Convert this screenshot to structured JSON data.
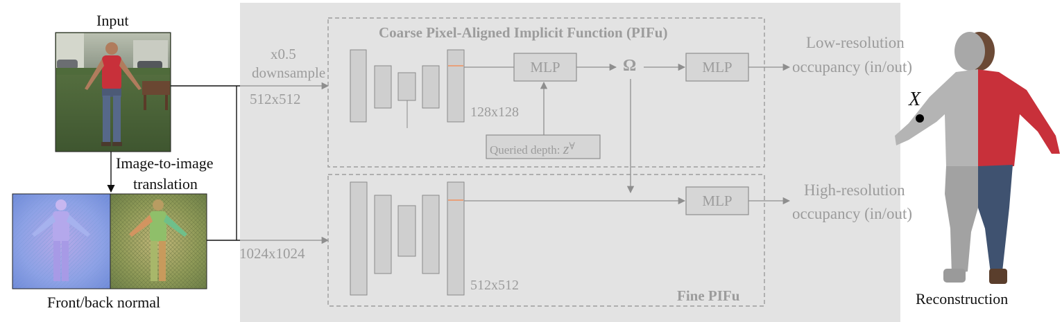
{
  "labels": {
    "input": "Input",
    "image_to_image_line1": "Image-to-image",
    "image_to_image_line2": "translation",
    "front_back_normal": "Front/back normal",
    "reconstruction": "Reconstruction",
    "coarse_title": "Coarse Pixel-Aligned Implicit Function (PIFu)",
    "fine_title": "Fine PIFu",
    "downsample_line1": "x0.5",
    "downsample_line2": "downsample",
    "res_512_input": "512x512",
    "res_1024_input": "1024x1024",
    "res_128": "128x128",
    "res_512_feature": "512x512",
    "mlp_coarse_1": "MLP",
    "mlp_coarse_2": "MLP",
    "mlp_fine": "MLP",
    "omega": "Ω",
    "queried_depth": "Queried depth:",
    "queried_depth_symbol": "z",
    "queried_depth_superscript": "∀",
    "low_res_line1": "Low-resolution",
    "low_res_line2": "occupancy (in/out)",
    "high_res_line1": "High-resolution",
    "high_res_line2": "occupancy (in/out)",
    "point_x": "X"
  },
  "colors": {
    "panel_bg": "#e3e3e3",
    "encoder_block_fill": "#cfcfcf",
    "encoder_block_stroke": "#8a8a8a",
    "feature_highlight": "#e8a07a",
    "shirt_red": "#c8303a",
    "normal_front": "#9aa6e6",
    "normal_back": "#9aa060"
  }
}
